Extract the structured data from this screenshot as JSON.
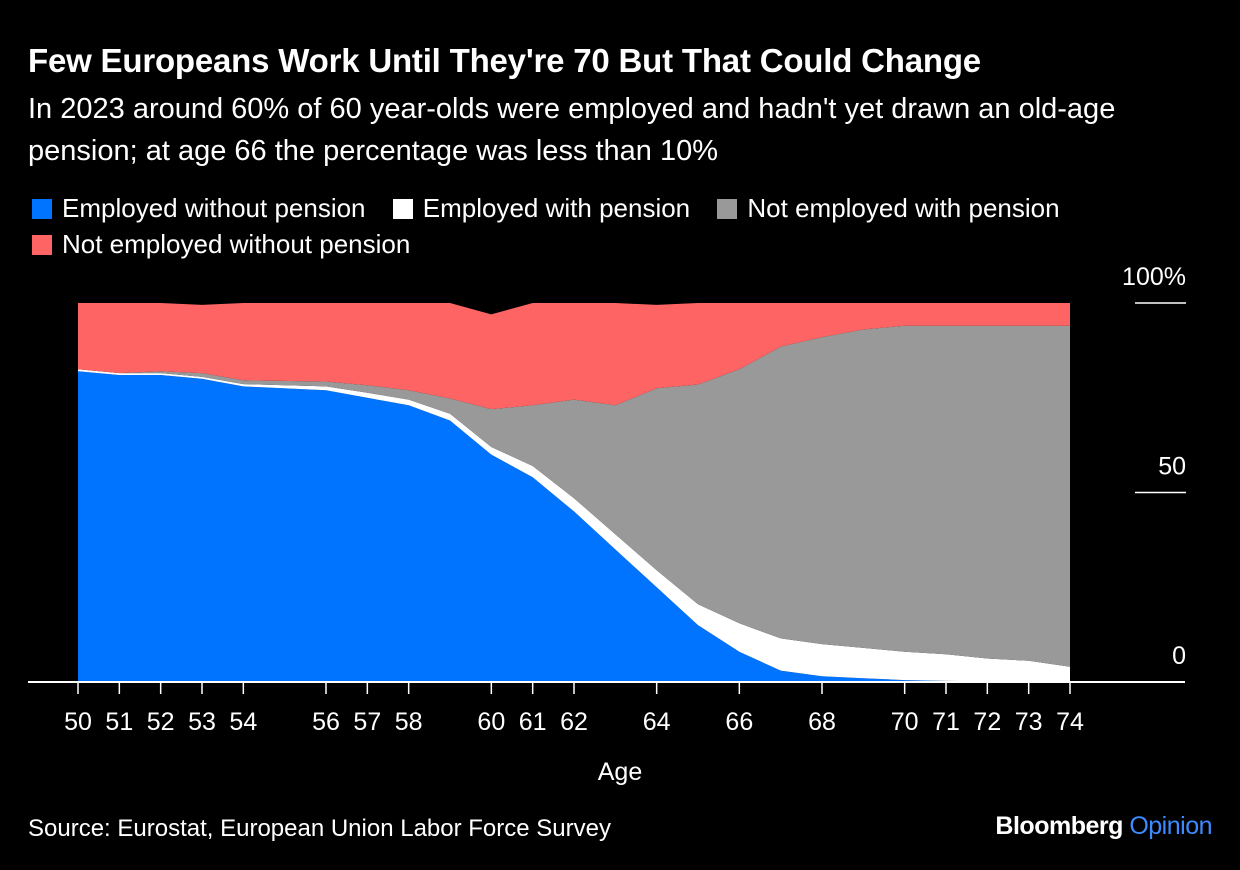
{
  "title": "Few Europeans Work Until They're 70 But That Could Change",
  "subtitle": "In 2023 around 60% of 60 year-olds were employed and hadn't yet drawn an old-age pension; at age 66 the percentage was less than 10%",
  "source": "Source: Eurostat, European Union Labor Force Survey",
  "brand": {
    "name": "Bloomberg",
    "product": "Opinion"
  },
  "colors": {
    "background": "#000000",
    "employed_without_pension": "#0073ff",
    "employed_with_pension": "#ffffff",
    "not_employed_with_pension": "#999999",
    "not_employed_without_pension": "#ff6464",
    "brand_accent": "#3d8bff"
  },
  "chart_data": {
    "type": "area",
    "stacked": true,
    "xlabel": "Age",
    "ylabel": "",
    "ylim": [
      0,
      100
    ],
    "y_ticks": [
      "0",
      "50",
      "100%"
    ],
    "y_tick_values": [
      0,
      50,
      100
    ],
    "grid": false,
    "legend_position": "top-left",
    "x": [
      50,
      51,
      52,
      53,
      54,
      56,
      57,
      58,
      59,
      60,
      61,
      62,
      63,
      64,
      65,
      66,
      67,
      68,
      69,
      70,
      71,
      72,
      73,
      74
    ],
    "x_tick_labels": [
      "50",
      "51",
      "52",
      "53",
      "54",
      "56",
      "57",
      "58",
      "60",
      "61",
      "62",
      "64",
      "66",
      "68",
      "70",
      "71",
      "72",
      "73",
      "74"
    ],
    "series": [
      {
        "name": "Employed without pension",
        "color": "#0073ff",
        "values": [
          82,
          81,
          81,
          80,
          78,
          77,
          75,
          73,
          69,
          60,
          54,
          45,
          35,
          25,
          15,
          8,
          3,
          1.5,
          1,
          0.5,
          0.3,
          0.2,
          0.1,
          0
        ]
      },
      {
        "name": "Employed with pension",
        "color": "#ffffff",
        "values": [
          0.5,
          0.5,
          0.5,
          0.5,
          0.6,
          1,
          1.3,
          1.5,
          1.8,
          2,
          3,
          3.5,
          4,
          4.5,
          5.5,
          7.5,
          8.5,
          8.5,
          8,
          7.5,
          7,
          6,
          5.5,
          4
        ]
      },
      {
        "name": "Not employed with pension",
        "color": "#999999",
        "values": [
          0,
          0,
          0.5,
          1,
          1,
          1.3,
          2,
          2.5,
          4,
          10,
          16,
          26,
          34,
          48,
          58,
          67,
          77,
          81,
          84,
          86,
          86.7,
          87.8,
          88.4,
          90
        ]
      },
      {
        "name": "Not employed without pension",
        "color": "#ff6464",
        "values": [
          17.5,
          18.5,
          18,
          18,
          20.4,
          20.7,
          21.7,
          23,
          25.2,
          25,
          27,
          25.5,
          27,
          22,
          21.5,
          17.5,
          11.5,
          9,
          7,
          6,
          6,
          6,
          6,
          6
        ]
      }
    ]
  }
}
